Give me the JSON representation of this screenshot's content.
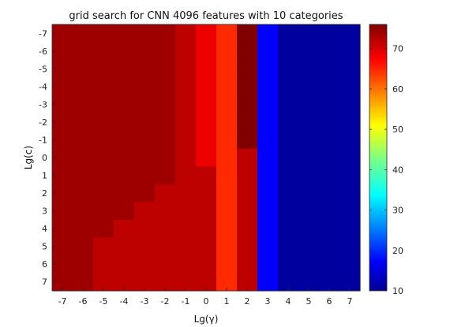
{
  "chart_data": {
    "type": "heatmap",
    "title": "grid search for CNN 4096 features with 10 categories",
    "xlabel": "Lg(γ)",
    "ylabel": "Lg(c)",
    "x_ticks": [
      "-7",
      "-6",
      "-5",
      "-4",
      "-3",
      "-2",
      "-1",
      "0",
      "1",
      "2",
      "3",
      "4",
      "5",
      "6",
      "7"
    ],
    "y_ticks": [
      "-7",
      "-6",
      "-5",
      "-4",
      "-3",
      "-2",
      "-1",
      "0",
      "1",
      "2",
      "3",
      "4",
      "5",
      "6",
      "7"
    ],
    "colorbar": {
      "ticks": [
        10,
        20,
        30,
        40,
        50,
        60,
        70
      ],
      "range": [
        10,
        76
      ],
      "colormap": "jet"
    },
    "values": [
      [
        74,
        74,
        74,
        74,
        74,
        74,
        72,
        69,
        65,
        76,
        18,
        12,
        12,
        12,
        12
      ],
      [
        74,
        74,
        74,
        74,
        74,
        74,
        72,
        69,
        65,
        76,
        18,
        12,
        12,
        12,
        12
      ],
      [
        74,
        74,
        74,
        74,
        74,
        74,
        72,
        69,
        65,
        76,
        18,
        12,
        12,
        12,
        12
      ],
      [
        74,
        74,
        74,
        74,
        74,
        74,
        72,
        69,
        65,
        76,
        18,
        12,
        12,
        12,
        12
      ],
      [
        74,
        74,
        74,
        74,
        74,
        74,
        72,
        69,
        65,
        76,
        18,
        12,
        12,
        12,
        12
      ],
      [
        74,
        74,
        74,
        74,
        74,
        74,
        72,
        69,
        65,
        76,
        18,
        12,
        12,
        12,
        12
      ],
      [
        74,
        74,
        74,
        74,
        74,
        74,
        72,
        69,
        65,
        76,
        18,
        12,
        12,
        12,
        12
      ],
      [
        74,
        74,
        74,
        74,
        74,
        74,
        72,
        69,
        65,
        72,
        18,
        12,
        12,
        12,
        12
      ],
      [
        74,
        74,
        74,
        74,
        74,
        74,
        72,
        72,
        65,
        72,
        18,
        12,
        12,
        12,
        12
      ],
      [
        74,
        74,
        74,
        74,
        74,
        72,
        72,
        72,
        65,
        72,
        18,
        12,
        12,
        12,
        12
      ],
      [
        74,
        74,
        74,
        74,
        72,
        72,
        72,
        72,
        65,
        72,
        18,
        12,
        12,
        12,
        12
      ],
      [
        74,
        74,
        74,
        72,
        72,
        72,
        72,
        72,
        65,
        72,
        18,
        12,
        12,
        12,
        12
      ],
      [
        74,
        74,
        72,
        72,
        72,
        72,
        72,
        72,
        65,
        72,
        18,
        12,
        12,
        12,
        12
      ],
      [
        74,
        74,
        72,
        72,
        72,
        72,
        72,
        72,
        65,
        72,
        18,
        12,
        12,
        12,
        12
      ],
      [
        74,
        74,
        72,
        72,
        72,
        72,
        72,
        72,
        65,
        72,
        18,
        12,
        12,
        12,
        12
      ]
    ]
  }
}
